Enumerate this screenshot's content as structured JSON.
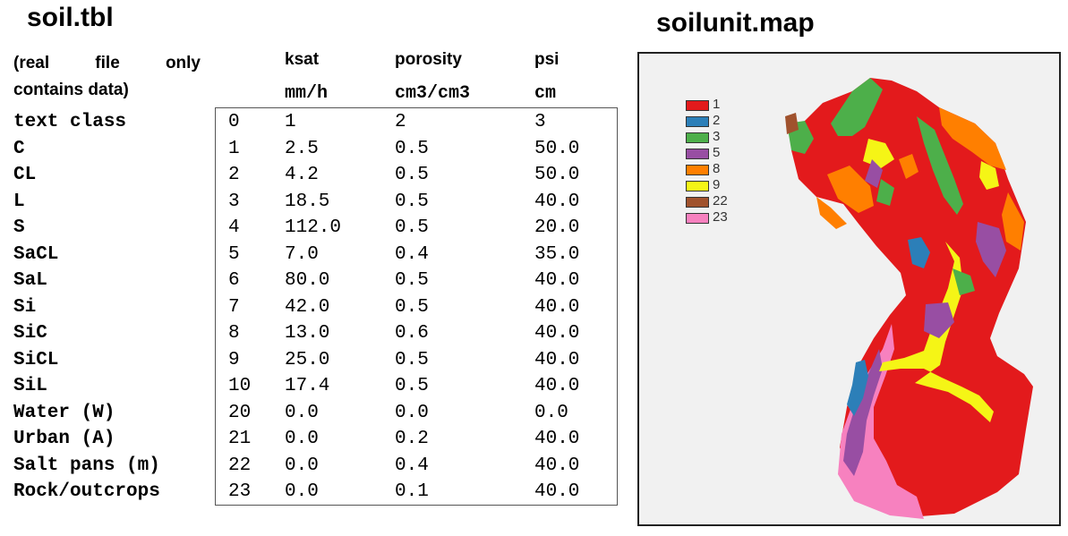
{
  "left_title": "soil.tbl",
  "right_title": "soilunit.map",
  "note": {
    "line1": "(real file only",
    "line2": "contains data)"
  },
  "headers": {
    "ksat": {
      "name": "ksat",
      "unit": "mm/h"
    },
    "porosity": {
      "name": "porosity",
      "unit": "cm3/cm3"
    },
    "psi": {
      "name": "psi",
      "unit": "cm"
    }
  },
  "rows": [
    {
      "class": "text class",
      "id": "0",
      "ksat": "1",
      "porosity": "2",
      "psi": "3"
    },
    {
      "class": "C",
      "id": "1",
      "ksat": "2.5",
      "porosity": "0.5",
      "psi": "50.0"
    },
    {
      "class": "CL",
      "id": "2",
      "ksat": "4.2",
      "porosity": "0.5",
      "psi": "50.0"
    },
    {
      "class": "L",
      "id": "3",
      "ksat": "18.5",
      "porosity": "0.5",
      "psi": "40.0"
    },
    {
      "class": "S",
      "id": "4",
      "ksat": "112.0",
      "porosity": "0.5",
      "psi": "20.0"
    },
    {
      "class": "SaCL",
      "id": "5",
      "ksat": "7.0",
      "porosity": "0.4",
      "psi": "35.0"
    },
    {
      "class": "SaL",
      "id": "6",
      "ksat": "80.0",
      "porosity": "0.5",
      "psi": "40.0"
    },
    {
      "class": "Si",
      "id": "7",
      "ksat": "42.0",
      "porosity": "0.5",
      "psi": "40.0"
    },
    {
      "class": "SiC",
      "id": "8",
      "ksat": "13.0",
      "porosity": "0.6",
      "psi": "40.0"
    },
    {
      "class": "SiCL",
      "id": "9",
      "ksat": "25.0",
      "porosity": "0.5",
      "psi": "40.0"
    },
    {
      "class": "SiL",
      "id": "10",
      "ksat": "17.4",
      "porosity": "0.5",
      "psi": "40.0"
    },
    {
      "class": "Water (W)",
      "id": "20",
      "ksat": "0.0",
      "porosity": "0.0",
      "psi": "0.0"
    },
    {
      "class": "Urban (A)",
      "id": "21",
      "ksat": "0.0",
      "porosity": "0.2",
      "psi": "40.0"
    },
    {
      "class": "Salt pans (m)",
      "id": "22",
      "ksat": "0.0",
      "porosity": "0.4",
      "psi": "40.0"
    },
    {
      "class": "Rock/outcrops",
      "id": "23",
      "ksat": "0.0",
      "porosity": "0.1",
      "psi": "40.0"
    }
  ],
  "legend": [
    {
      "label": "1",
      "color": "#e31a1c"
    },
    {
      "label": "2",
      "color": "#2c7fb8"
    },
    {
      "label": "3",
      "color": "#4daf4a"
    },
    {
      "label": "5",
      "color": "#984ea3"
    },
    {
      "label": "8",
      "color": "#ff7f00"
    },
    {
      "label": "9",
      "color": "#f5f516"
    },
    {
      "label": "22",
      "color": "#a0522d"
    },
    {
      "label": "23",
      "color": "#f781bf"
    }
  ]
}
